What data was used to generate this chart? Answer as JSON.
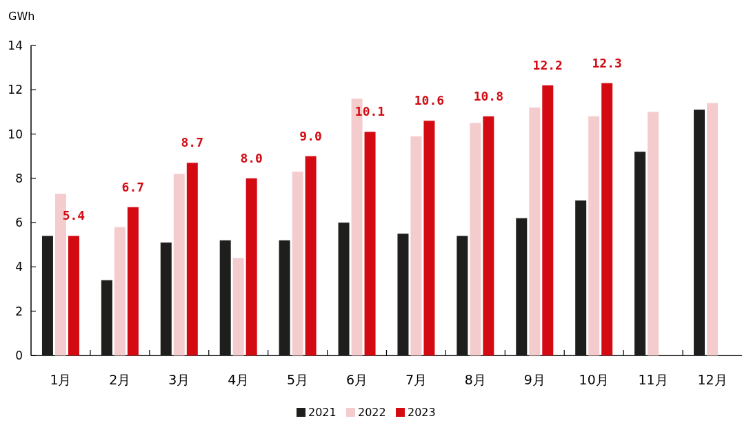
{
  "chart_data": {
    "type": "bar",
    "ylabel": "GWh",
    "categories": [
      "1月",
      "2月",
      "3月",
      "4月",
      "5月",
      "6月",
      "7月",
      "8月",
      "9月",
      "10月",
      "11月",
      "12月"
    ],
    "series": [
      {
        "name": "2021",
        "color": "#1e1e1c",
        "values": [
          5.4,
          3.4,
          5.1,
          5.2,
          5.2,
          6.0,
          5.5,
          5.4,
          6.2,
          7.0,
          9.2,
          11.1
        ]
      },
      {
        "name": "2022",
        "color": "#f5cccd",
        "values": [
          7.3,
          5.8,
          8.2,
          4.4,
          8.3,
          11.6,
          9.9,
          10.5,
          11.2,
          10.8,
          11.0,
          11.4
        ]
      },
      {
        "name": "2023",
        "color": "#d30a12",
        "values": [
          5.4,
          6.7,
          8.7,
          8.0,
          9.0,
          10.1,
          10.6,
          10.8,
          12.2,
          12.3,
          null,
          null
        ],
        "value_labels": [
          "5.4",
          "6.7",
          "8.7",
          "8.0",
          "9.0",
          "10.1",
          "10.6",
          "10.8",
          "12.2",
          "12.3",
          null,
          null
        ]
      }
    ],
    "ylim": [
      0,
      14
    ],
    "yticks": [
      0,
      2,
      4,
      6,
      8,
      10,
      12,
      14
    ],
    "grid": false,
    "legend": "bottom"
  }
}
